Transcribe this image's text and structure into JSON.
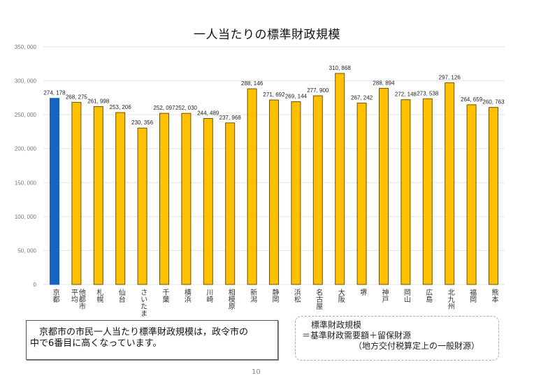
{
  "page": {
    "note_box": {
      "line1": "京都市の市民一人当たり標準財政規模は，政令市の",
      "line2": "中で6番目に高くなっています。"
    },
    "definition_box": {
      "line1": "標準財政規模",
      "line2": "＝基準財政需要額＋留保財源",
      "line3": "（地方交付税算定上の一般財源）"
    },
    "page_number": "10"
  },
  "chart_data": {
    "type": "bar",
    "title": "一人当たりの標準財政規模",
    "xlabel": "",
    "ylabel": "",
    "ylim": [
      0,
      350000
    ],
    "yticks": [
      0,
      50000,
      100000,
      150000,
      200000,
      250000,
      300000,
      350000
    ],
    "ytick_labels": [
      "0",
      "50, 000",
      "100, 000",
      "150, 000",
      "200, 000",
      "250, 000",
      "300, 000",
      "350, 000"
    ],
    "grid": true,
    "categories": [
      "京都",
      "他都市平均",
      "札幌",
      "仙台",
      "さいたま",
      "千葉",
      "横浜",
      "川崎",
      "相模原",
      "新潟",
      "静岡",
      "浜松",
      "名古屋",
      "大阪",
      "堺",
      "神戸",
      "岡山",
      "広島",
      "北九州",
      "福岡",
      "熊本"
    ],
    "category_display": [
      "京都",
      "他都市\n平均",
      "札幌",
      "仙台",
      "さいたま",
      "千葉",
      "横浜",
      "川崎",
      "相模原",
      "新潟",
      "静岡",
      "浜松",
      "名古屋",
      "大阪",
      "堺",
      "神戸",
      "岡山",
      "広島",
      "北九州",
      "福岡",
      "熊本"
    ],
    "values": [
      274178,
      268275,
      261998,
      253206,
      230356,
      252097,
      252030,
      244489,
      237968,
      288146,
      271692,
      269144,
      277900,
      310868,
      267242,
      288894,
      272148,
      273538,
      297126,
      264659,
      260763
    ],
    "value_labels": [
      "274, 178",
      "268, 275",
      "261, 998",
      "253, 206",
      "230, 356",
      "252, 097",
      "252, 030",
      "244, 489",
      "237, 968",
      "288, 146",
      "271, 692",
      "269, 144",
      "277, 900",
      "310, 868",
      "267, 242",
      "288, 894",
      "272, 148",
      "273, 538",
      "297, 126",
      "264, 659",
      "260, 763"
    ],
    "highlight_index": 0,
    "colors": {
      "highlight": "#1565c0",
      "bar": "#ffc000",
      "bar_border": "#6b5200",
      "grid": "#e3e3e3"
    }
  }
}
